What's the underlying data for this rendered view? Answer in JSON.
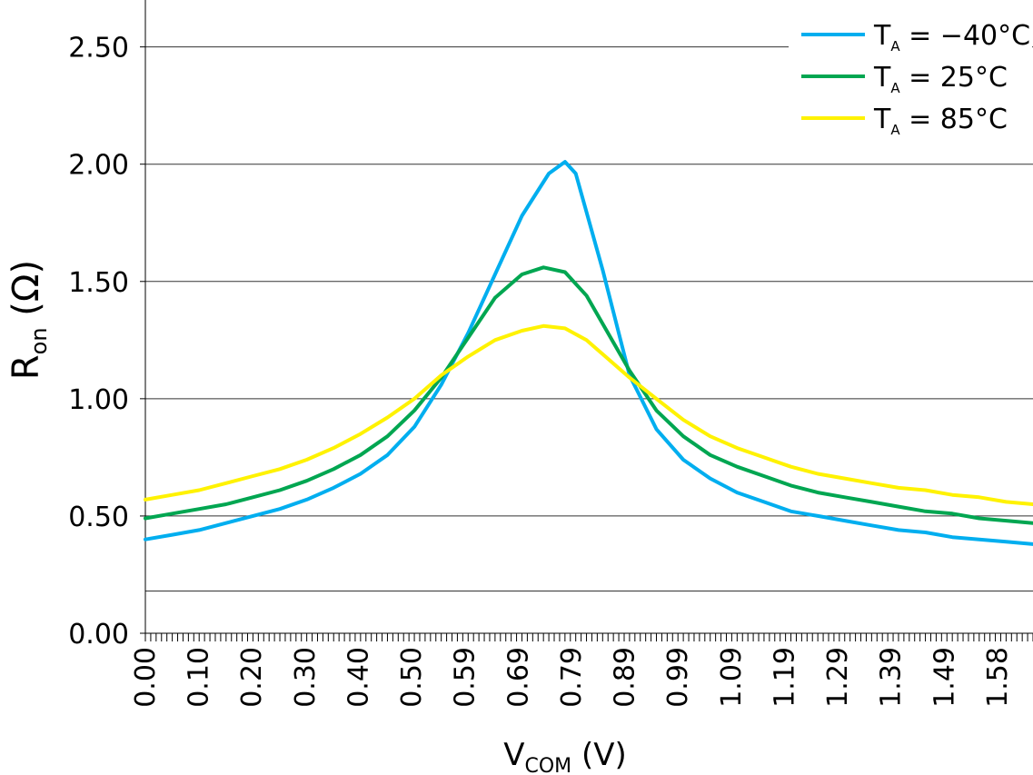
{
  "chart_data": {
    "type": "line",
    "title": "",
    "xlabel": {
      "main": "V",
      "sub": "COM",
      "unit": " (V)"
    },
    "ylabel": {
      "main": "R",
      "sub": "on",
      "unit": " (Ω)"
    },
    "xlim": [
      0,
      1.65
    ],
    "ylim": [
      0,
      2.7
    ],
    "x_tick_labels": [
      "0.00",
      "0.10",
      "0.20",
      "0.30",
      "0.40",
      "0.50",
      "0.59",
      "0.69",
      "0.79",
      "0.89",
      "0.99",
      "1.09",
      "1.19",
      "1.29",
      "1.39",
      "1.49",
      "1.58"
    ],
    "x_tick_values": [
      0.0,
      0.099,
      0.198,
      0.297,
      0.396,
      0.495,
      0.594,
      0.693,
      0.792,
      0.891,
      0.99,
      1.089,
      1.188,
      1.287,
      1.386,
      1.485,
      1.584
    ],
    "y_tick_labels": [
      "0.00",
      "0.50",
      "1.00",
      "1.50",
      "2.00",
      "2.50"
    ],
    "y_tick_values": [
      0,
      0.5,
      1.0,
      1.5,
      2.0,
      2.5
    ],
    "gridlines": [
      0.18,
      0.5,
      1.0,
      1.5,
      2.0,
      2.5
    ],
    "legend_position": "top-right",
    "series": [
      {
        "name": "T_A = −40°C",
        "legend": {
          "pre": "T",
          "sub": "A",
          "post": " = −40°C"
        },
        "color": "#00AEEF",
        "x": [
          0.0,
          0.05,
          0.1,
          0.15,
          0.2,
          0.25,
          0.3,
          0.35,
          0.4,
          0.45,
          0.5,
          0.55,
          0.6,
          0.65,
          0.7,
          0.75,
          0.78,
          0.8,
          0.85,
          0.9,
          0.95,
          1.0,
          1.05,
          1.1,
          1.15,
          1.2,
          1.25,
          1.3,
          1.35,
          1.4,
          1.45,
          1.5,
          1.55,
          1.6,
          1.65
        ],
        "y": [
          0.4,
          0.42,
          0.44,
          0.47,
          0.5,
          0.53,
          0.57,
          0.62,
          0.68,
          0.76,
          0.88,
          1.06,
          1.28,
          1.53,
          1.78,
          1.96,
          2.01,
          1.96,
          1.55,
          1.1,
          0.87,
          0.74,
          0.66,
          0.6,
          0.56,
          0.52,
          0.5,
          0.48,
          0.46,
          0.44,
          0.43,
          0.41,
          0.4,
          0.39,
          0.38
        ]
      },
      {
        "name": "T_A = 25°C",
        "legend": {
          "pre": "T",
          "sub": "A",
          "post": " = 25°C"
        },
        "color": "#00A651",
        "x": [
          0.0,
          0.05,
          0.1,
          0.15,
          0.2,
          0.25,
          0.3,
          0.35,
          0.4,
          0.45,
          0.5,
          0.55,
          0.6,
          0.65,
          0.7,
          0.74,
          0.78,
          0.82,
          0.85,
          0.9,
          0.95,
          1.0,
          1.05,
          1.1,
          1.15,
          1.2,
          1.25,
          1.3,
          1.35,
          1.4,
          1.45,
          1.5,
          1.55,
          1.6,
          1.65
        ],
        "y": [
          0.49,
          0.51,
          0.53,
          0.55,
          0.58,
          0.61,
          0.65,
          0.7,
          0.76,
          0.84,
          0.95,
          1.09,
          1.26,
          1.43,
          1.53,
          1.56,
          1.54,
          1.44,
          1.32,
          1.12,
          0.95,
          0.84,
          0.76,
          0.71,
          0.67,
          0.63,
          0.6,
          0.58,
          0.56,
          0.54,
          0.52,
          0.51,
          0.49,
          0.48,
          0.47
        ]
      },
      {
        "name": "T_A = 85°C",
        "legend": {
          "pre": "T",
          "sub": "A",
          "post": " = 85°C"
        },
        "color": "#FFF200",
        "x": [
          0.0,
          0.05,
          0.1,
          0.15,
          0.2,
          0.25,
          0.3,
          0.35,
          0.4,
          0.45,
          0.5,
          0.55,
          0.6,
          0.65,
          0.7,
          0.74,
          0.78,
          0.82,
          0.85,
          0.9,
          0.95,
          1.0,
          1.05,
          1.1,
          1.15,
          1.2,
          1.25,
          1.3,
          1.35,
          1.4,
          1.45,
          1.5,
          1.55,
          1.6,
          1.65
        ],
        "y": [
          0.57,
          0.59,
          0.61,
          0.64,
          0.67,
          0.7,
          0.74,
          0.79,
          0.85,
          0.92,
          1.0,
          1.1,
          1.18,
          1.25,
          1.29,
          1.31,
          1.3,
          1.25,
          1.19,
          1.09,
          1.0,
          0.91,
          0.84,
          0.79,
          0.75,
          0.71,
          0.68,
          0.66,
          0.64,
          0.62,
          0.61,
          0.59,
          0.58,
          0.56,
          0.55
        ]
      }
    ]
  }
}
